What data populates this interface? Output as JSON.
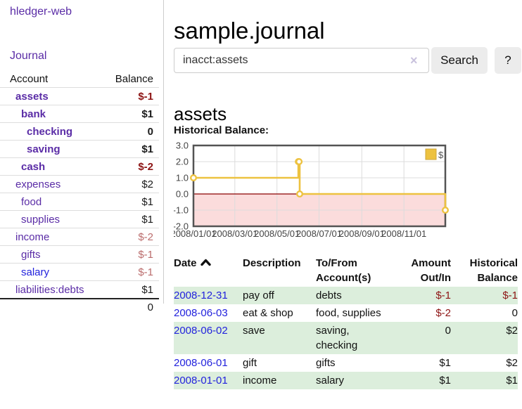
{
  "app": {
    "brand": "hledger-web",
    "nav": {
      "journal": "Journal"
    }
  },
  "sidebar": {
    "headers": {
      "account": "Account",
      "balance": "Balance"
    },
    "accounts": [
      {
        "name": "assets",
        "balance": "$-1",
        "indent": 1,
        "current": true,
        "balance_style": "neg-strong"
      },
      {
        "name": "bank",
        "balance": "$1",
        "indent": 2,
        "current": true,
        "balance_style": "pos"
      },
      {
        "name": "checking",
        "balance": "0",
        "indent": 3,
        "current": true,
        "balance_style": "pos"
      },
      {
        "name": "saving",
        "balance": "$1",
        "indent": 3,
        "current": true,
        "balance_style": "pos"
      },
      {
        "name": "cash",
        "balance": "$-2",
        "indent": 2,
        "current": true,
        "balance_style": "neg-strong"
      },
      {
        "name": "expenses",
        "balance": "$2",
        "indent": 1,
        "current": false,
        "balance_style": "pos"
      },
      {
        "name": "food",
        "balance": "$1",
        "indent": 2,
        "current": false,
        "balance_style": "pos"
      },
      {
        "name": "supplies",
        "balance": "$1",
        "indent": 2,
        "current": false,
        "balance_style": "pos"
      },
      {
        "name": "income",
        "balance": "$-2",
        "indent": 1,
        "current": false,
        "balance_style": "neg-soft"
      },
      {
        "name": "gifts",
        "balance": "$-1",
        "indent": 2,
        "current": false,
        "balance_style": "neg-soft"
      },
      {
        "name": "salary",
        "balance": "$-1",
        "indent": 2,
        "current": false,
        "balance_style": "neg-soft",
        "link_style": "unvisited"
      },
      {
        "name": "liabilities:debts",
        "balance": "$1",
        "indent": 1,
        "current": false,
        "balance_style": "pos"
      }
    ],
    "total": "0"
  },
  "header": {
    "title": "sample.journal"
  },
  "search": {
    "value": "inacct:assets",
    "clear_icon": "×",
    "search_button": "Search",
    "help_button": "?"
  },
  "account_view": {
    "heading": "assets",
    "chart_title": "Historical Balance:"
  },
  "chart_data": {
    "type": "line",
    "step": true,
    "title": "Historical Balance",
    "series": [
      {
        "name": "$",
        "color": "#edc240",
        "points": [
          [
            "2008-01-01",
            1.0
          ],
          [
            "2008-06-01",
            2.0
          ],
          [
            "2008-06-02",
            2.0
          ],
          [
            "2008-06-03",
            0.0
          ],
          [
            "2008-12-31",
            -1.0
          ]
        ]
      }
    ],
    "ylim": [
      -2.0,
      3.0
    ],
    "y_ticks": [
      {
        "value": 3.0,
        "label": "3.0"
      },
      {
        "value": 2.0,
        "label": "2.0"
      },
      {
        "value": 1.0,
        "label": "1.0"
      },
      {
        "value": 0.0,
        "label": "0.0"
      },
      {
        "value": -1.0,
        "label": "-1.0"
      },
      {
        "value": -2.0,
        "label": "-2.0"
      }
    ],
    "x_range": [
      "2008-01-01",
      "2008-12-31"
    ],
    "x_ticks": [
      {
        "date": "2008-01-01",
        "label": "2008/01/01"
      },
      {
        "date": "2008-03-01",
        "label": "2008/03/01"
      },
      {
        "date": "2008-05-01",
        "label": "2008/05/01"
      },
      {
        "date": "2008-07-01",
        "label": "2008/07/01"
      },
      {
        "date": "2008-09-01",
        "label": "2008/09/01"
      },
      {
        "date": "2008-11-01",
        "label": "2008/11/01"
      }
    ],
    "legend": {
      "label": "$",
      "position": "top-right"
    },
    "grid": true,
    "colors": {
      "border": "#545454",
      "gridline": "#dcdcdc",
      "zero_line": "#8b0000",
      "negative_region": "#fbdcdc",
      "marker_fill": "#ffffff",
      "tick_text": "#444444"
    }
  },
  "register": {
    "columns": [
      {
        "lines": [
          "Date"
        ],
        "align": "left",
        "sort": "asc"
      },
      {
        "lines": [
          "Description"
        ],
        "align": "left"
      },
      {
        "lines": [
          "To/From",
          "Account(s)"
        ],
        "align": "left"
      },
      {
        "lines": [
          "Amount",
          "Out/In"
        ],
        "align": "right"
      },
      {
        "lines": [
          "Historical",
          "Balance"
        ],
        "align": "right"
      }
    ],
    "rows": [
      {
        "date": "2008-12-31",
        "description": "pay off",
        "accounts": "debts",
        "amount": "$-1",
        "amount_neg": true,
        "balance": "$-1",
        "balance_neg": true
      },
      {
        "date": "2008-06-03",
        "description": "eat & shop",
        "accounts": "food, supplies",
        "amount": "$-2",
        "amount_neg": true,
        "balance": "0",
        "balance_neg": false
      },
      {
        "date": "2008-06-02",
        "description": "save",
        "accounts": "saving, checking",
        "amount": "0",
        "amount_neg": false,
        "balance": "$2",
        "balance_neg": false
      },
      {
        "date": "2008-06-01",
        "description": "gift",
        "accounts": "gifts",
        "amount": "$1",
        "amount_neg": false,
        "balance": "$2",
        "balance_neg": false
      },
      {
        "date": "2008-01-01",
        "description": "income",
        "accounts": "salary",
        "amount": "$1",
        "amount_neg": false,
        "balance": "$1",
        "balance_neg": false
      }
    ]
  }
}
